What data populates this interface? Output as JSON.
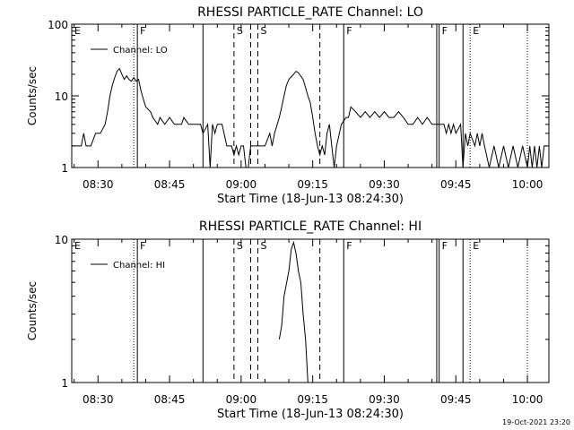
{
  "chart_data": [
    {
      "type": "line",
      "title": "RHESSI PARTICLE_RATE Channel: LO",
      "xlabel": "Start Time (18-Jun-13 08:24:30)",
      "ylabel": "Counts/sec",
      "yscale": "log",
      "ylim": [
        1,
        100
      ],
      "xlim": [
        "08:24:30",
        "10:04:30"
      ],
      "x_ticks": [
        "08:30",
        "08:45",
        "09:00",
        "09:15",
        "09:30",
        "09:45",
        "10:00"
      ],
      "y_ticks": [
        "1",
        "10",
        "100"
      ],
      "legend": {
        "position": "top-left",
        "entries": [
          "Channel: LO"
        ]
      },
      "series": [
        {
          "name": "Channel: LO",
          "points": [
            [
              "08:24:30",
              2
            ],
            [
              "08:26:30",
              2
            ],
            [
              "08:27:00",
              3
            ],
            [
              "08:27:30",
              2
            ],
            [
              "08:28:30",
              2
            ],
            [
              "08:29:30",
              3
            ],
            [
              "08:30:30",
              3
            ],
            [
              "08:31:30",
              4
            ],
            [
              "08:32:00",
              6
            ],
            [
              "08:32:30",
              10
            ],
            [
              "08:33:00",
              14
            ],
            [
              "08:33:30",
              18
            ],
            [
              "08:34:00",
              22
            ],
            [
              "08:34:30",
              24
            ],
            [
              "08:35:00",
              20
            ],
            [
              "08:35:30",
              17
            ],
            [
              "08:36:00",
              19
            ],
            [
              "08:36:30",
              17
            ],
            [
              "08:37:00",
              16
            ],
            [
              "08:37:30",
              18
            ],
            [
              "08:38:00",
              16
            ],
            [
              "08:38:30",
              17
            ],
            [
              "08:39:00",
              12
            ],
            [
              "08:39:30",
              9
            ],
            [
              "08:40:00",
              7
            ],
            [
              "08:41:00",
              6
            ],
            [
              "08:41:30",
              5
            ],
            [
              "08:42:30",
              4
            ],
            [
              "08:43:00",
              5
            ],
            [
              "08:44:00",
              4
            ],
            [
              "08:45:00",
              5
            ],
            [
              "08:46:00",
              4
            ],
            [
              "08:47:30",
              4
            ],
            [
              "08:48:00",
              5
            ],
            [
              "08:49:00",
              4
            ],
            [
              "08:50:00",
              4
            ],
            [
              "08:51:30",
              4
            ],
            [
              "08:52:00",
              3
            ],
            [
              "08:53:00",
              4
            ],
            [
              "08:53:30",
              1
            ],
            [
              "08:54:00",
              4
            ],
            [
              "08:54:30",
              3
            ],
            [
              "08:55:00",
              4
            ],
            [
              "08:56:00",
              4
            ],
            [
              "08:57:00",
              2
            ],
            [
              "08:58:00",
              2
            ],
            [
              "08:58:30",
              1.5
            ],
            [
              "08:59:00",
              2
            ],
            [
              "08:59:30",
              1.5
            ],
            [
              "09:00:00",
              2
            ],
            [
              "09:00:30",
              2
            ],
            [
              "09:01:00",
              1
            ],
            [
              "09:01:30",
              1
            ],
            [
              "09:02:00",
              2
            ],
            [
              "09:03:00",
              2
            ],
            [
              "09:05:00",
              2
            ],
            [
              "09:06:00",
              3
            ],
            [
              "09:06:30",
              2
            ],
            [
              "09:07:00",
              3
            ],
            [
              "09:08:00",
              5
            ],
            [
              "09:08:30",
              7
            ],
            [
              "09:09:00",
              10
            ],
            [
              "09:09:30",
              14
            ],
            [
              "09:10:00",
              17
            ],
            [
              "09:11:00",
              20
            ],
            [
              "09:11:30",
              22
            ],
            [
              "09:12:00",
              21
            ],
            [
              "09:13:00",
              17
            ],
            [
              "09:13:30",
              13
            ],
            [
              "09:14:00",
              10
            ],
            [
              "09:14:30",
              8
            ],
            [
              "09:15:00",
              5
            ],
            [
              "09:15:30",
              3
            ],
            [
              "09:16:00",
              2
            ],
            [
              "09:16:30",
              1.5
            ],
            [
              "09:17:00",
              2
            ],
            [
              "09:17:30",
              1.5
            ],
            [
              "09:18:00",
              3
            ],
            [
              "09:18:30",
              4
            ],
            [
              "09:19:00",
              2
            ],
            [
              "09:19:30",
              1
            ],
            [
              "09:20:00",
              2
            ],
            [
              "09:21:00",
              4
            ],
            [
              "09:22:00",
              5
            ],
            [
              "09:22:30",
              5
            ],
            [
              "09:23:00",
              7
            ],
            [
              "09:24:00",
              6
            ],
            [
              "09:25:00",
              5
            ],
            [
              "09:26:00",
              6
            ],
            [
              "09:27:00",
              5
            ],
            [
              "09:28:00",
              6
            ],
            [
              "09:29:00",
              5
            ],
            [
              "09:30:00",
              6
            ],
            [
              "09:31:00",
              5
            ],
            [
              "09:32:00",
              5
            ],
            [
              "09:33:00",
              6
            ],
            [
              "09:34:00",
              5
            ],
            [
              "09:35:00",
              4
            ],
            [
              "09:36:00",
              4
            ],
            [
              "09:37:00",
              5
            ],
            [
              "09:38:00",
              4
            ],
            [
              "09:39:00",
              5
            ],
            [
              "09:40:00",
              4
            ],
            [
              "09:41:00",
              4
            ],
            [
              "09:41:30",
              4
            ],
            [
              "09:42:30",
              4
            ],
            [
              "09:43:00",
              3
            ],
            [
              "09:43:30",
              4
            ],
            [
              "09:44:00",
              3
            ],
            [
              "09:44:30",
              4
            ],
            [
              "09:45:00",
              3
            ],
            [
              "09:46:00",
              4
            ],
            [
              "09:46:30",
              1
            ],
            [
              "09:47:00",
              3
            ],
            [
              "09:47:30",
              2
            ],
            [
              "09:48:00",
              3
            ],
            [
              "09:49:00",
              2
            ],
            [
              "09:49:30",
              3
            ],
            [
              "09:50:00",
              2
            ],
            [
              "09:50:30",
              3
            ],
            [
              "09:51:00",
              2
            ],
            [
              "09:52:00",
              1
            ],
            [
              "09:53:00",
              2
            ],
            [
              "09:54:00",
              1
            ],
            [
              "09:55:00",
              2
            ],
            [
              "09:56:00",
              1
            ],
            [
              "09:57:00",
              2
            ],
            [
              "09:58:00",
              1
            ],
            [
              "09:59:00",
              2
            ],
            [
              "10:00:00",
              1
            ],
            [
              "10:00:30",
              2
            ],
            [
              "10:01:00",
              1
            ],
            [
              "10:01:30",
              2
            ],
            [
              "10:02:00",
              1
            ],
            [
              "10:02:30",
              2
            ],
            [
              "10:03:00",
              1
            ],
            [
              "10:03:30",
              2
            ],
            [
              "10:04:00",
              2
            ]
          ]
        }
      ],
      "events": [
        {
          "time": "08:24:30",
          "label": "E",
          "style": "none"
        },
        {
          "time": "08:37:30",
          "label": "",
          "style": "dotted"
        },
        {
          "time": "08:38:15",
          "label": "F",
          "style": "solid"
        },
        {
          "time": "08:52:00",
          "label": "",
          "style": "solid"
        },
        {
          "time": "08:58:30",
          "label": "S",
          "style": "dashed"
        },
        {
          "time": "09:02:00",
          "label": "",
          "style": "dashed"
        },
        {
          "time": "09:03:30",
          "label": "S",
          "style": "dashed"
        },
        {
          "time": "09:16:30",
          "label": "",
          "style": "dashed"
        },
        {
          "time": "09:21:30",
          "label": "F",
          "style": "solid"
        },
        {
          "time": "09:41:00",
          "label": "",
          "style": "solid"
        },
        {
          "time": "09:41:30",
          "label": "F",
          "style": "solid"
        },
        {
          "time": "09:46:30",
          "label": "",
          "style": "solid"
        },
        {
          "time": "09:48:00",
          "label": "E",
          "style": "dotted"
        },
        {
          "time": "10:00:00",
          "label": "",
          "style": "dotted"
        }
      ]
    },
    {
      "type": "line",
      "title": "RHESSI PARTICLE_RATE Channel: HI",
      "xlabel": "Start Time (18-Jun-13 08:24:30)",
      "ylabel": "Counts/sec",
      "yscale": "log",
      "ylim": [
        1,
        10
      ],
      "xlim": [
        "08:24:30",
        "10:04:30"
      ],
      "x_ticks": [
        "08:30",
        "08:45",
        "09:00",
        "09:15",
        "09:30",
        "09:45",
        "10:00"
      ],
      "y_ticks": [
        "1",
        "10"
      ],
      "legend": {
        "position": "top-left",
        "entries": [
          "Channel: HI"
        ]
      },
      "series": [
        {
          "name": "Channel: HI",
          "points": [
            [
              "09:08:00",
              2
            ],
            [
              "09:08:30",
              2.5
            ],
            [
              "09:09:00",
              4
            ],
            [
              "09:10:00",
              6
            ],
            [
              "09:10:30",
              8.5
            ],
            [
              "09:11:00",
              9.5
            ],
            [
              "09:11:30",
              8
            ],
            [
              "09:12:00",
              6
            ],
            [
              "09:12:30",
              5
            ],
            [
              "09:13:00",
              3
            ],
            [
              "09:13:30",
              2
            ],
            [
              "09:14:00",
              1
            ]
          ]
        }
      ],
      "events": [
        {
          "time": "08:24:30",
          "label": "E",
          "style": "none"
        },
        {
          "time": "08:37:30",
          "label": "",
          "style": "dotted"
        },
        {
          "time": "08:38:15",
          "label": "F",
          "style": "solid"
        },
        {
          "time": "08:52:00",
          "label": "",
          "style": "solid"
        },
        {
          "time": "08:58:30",
          "label": "S",
          "style": "dashed"
        },
        {
          "time": "09:02:00",
          "label": "",
          "style": "dashed"
        },
        {
          "time": "09:03:30",
          "label": "S",
          "style": "dashed"
        },
        {
          "time": "09:16:30",
          "label": "",
          "style": "dashed"
        },
        {
          "time": "09:21:30",
          "label": "F",
          "style": "solid"
        },
        {
          "time": "09:41:00",
          "label": "",
          "style": "solid"
        },
        {
          "time": "09:41:30",
          "label": "F",
          "style": "solid"
        },
        {
          "time": "09:46:30",
          "label": "",
          "style": "solid"
        },
        {
          "time": "09:48:00",
          "label": "E",
          "style": "dotted"
        },
        {
          "time": "10:00:00",
          "label": "",
          "style": "dotted"
        }
      ]
    }
  ],
  "footer": {
    "timestamp": "19-Oct-2021 23:20"
  }
}
